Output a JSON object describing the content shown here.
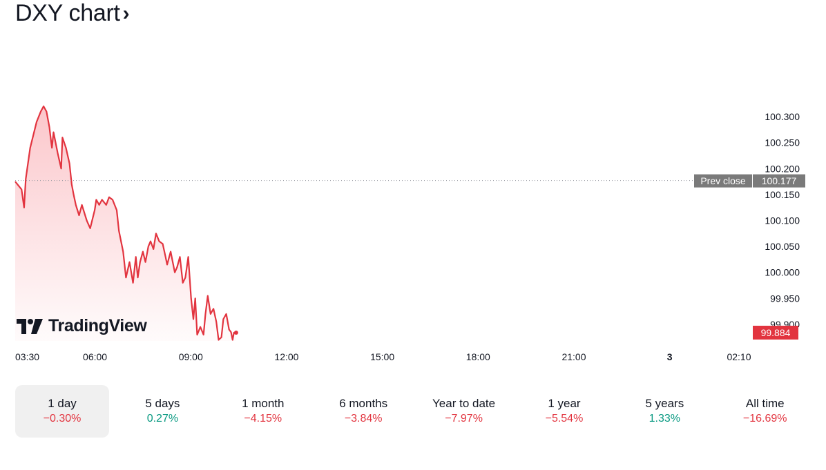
{
  "header": {
    "title": "DXY chart",
    "chevron": "›"
  },
  "watermark": {
    "text": "TradingView",
    "icon": "tradingview-logo-icon"
  },
  "colors": {
    "line": "#e2343f",
    "negative": "#e2343f",
    "positive": "#089981",
    "prev_close_bg": "#7a7a7a",
    "last_price_bg": "#e2343f"
  },
  "prev_close": {
    "label": "Prev close",
    "value": "100.177"
  },
  "last_price": {
    "value": "99.884"
  },
  "periods": [
    {
      "label": "1 day",
      "change": "−0.30%",
      "direction": "negative",
      "active": true
    },
    {
      "label": "5 days",
      "change": "0.27%",
      "direction": "positive",
      "active": false
    },
    {
      "label": "1 month",
      "change": "−4.15%",
      "direction": "negative",
      "active": false
    },
    {
      "label": "6 months",
      "change": "−3.84%",
      "direction": "negative",
      "active": false
    },
    {
      "label": "Year to date",
      "change": "−7.97%",
      "direction": "negative",
      "active": false
    },
    {
      "label": "1 year",
      "change": "−5.54%",
      "direction": "negative",
      "active": false
    },
    {
      "label": "5 years",
      "change": "1.33%",
      "direction": "positive",
      "active": false
    },
    {
      "label": "All time",
      "change": "−16.69%",
      "direction": "negative",
      "active": false
    }
  ],
  "chart_data": {
    "type": "area",
    "title": "",
    "xlabel": "",
    "ylabel": "",
    "ylim": [
      99.868,
      100.336
    ],
    "x_ticks": [
      {
        "label": "03:30",
        "hours": 3.5,
        "bold": false
      },
      {
        "label": "06:00",
        "hours": 6.0,
        "bold": false
      },
      {
        "label": "09:00",
        "hours": 9.0,
        "bold": false
      },
      {
        "label": "12:00",
        "hours": 12.0,
        "bold": false
      },
      {
        "label": "15:00",
        "hours": 15.0,
        "bold": false
      },
      {
        "label": "18:00",
        "hours": 18.0,
        "bold": false
      },
      {
        "label": "21:00",
        "hours": 21.0,
        "bold": false
      },
      {
        "label": "3",
        "hours": 24.0,
        "bold": true
      },
      {
        "label": "02:10",
        "hours": 26.17,
        "bold": false
      }
    ],
    "y_ticks": [
      "100.300",
      "100.250",
      "100.200",
      "100.150",
      "100.100",
      "100.050",
      "100.000",
      "99.950",
      "99.900"
    ],
    "grid": false,
    "series": [
      {
        "x": [
          3.5,
          3.7,
          3.78,
          3.83,
          3.97,
          4.17,
          4.3,
          4.39,
          4.48,
          4.57,
          4.61,
          4.65,
          4.7,
          4.83,
          4.94,
          4.98,
          5.09,
          5.2,
          5.27,
          5.33,
          5.4,
          5.5,
          5.59,
          5.74,
          5.85,
          5.99,
          6.04,
          6.13,
          6.22,
          6.35,
          6.44,
          6.55,
          6.68,
          6.75,
          6.88,
          6.97,
          7.08,
          7.19,
          7.28,
          7.34,
          7.41,
          7.5,
          7.58,
          7.67,
          7.74,
          7.83,
          7.91,
          8.01,
          8.12,
          8.21,
          8.26,
          8.37,
          8.5,
          8.57,
          8.66,
          8.75,
          8.83,
          8.92,
          9.01,
          9.08,
          9.14,
          9.2,
          9.3,
          9.4,
          9.46,
          9.53,
          9.62,
          9.71,
          9.8,
          9.87,
          9.96,
          10.02,
          10.11,
          10.2,
          10.26,
          10.31,
          10.35,
          10.42
        ],
        "y": [
          100.175,
          100.16,
          100.125,
          100.18,
          100.24,
          100.29,
          100.31,
          100.32,
          100.31,
          100.28,
          100.26,
          100.24,
          100.27,
          100.23,
          100.2,
          100.26,
          100.24,
          100.21,
          100.17,
          100.15,
          100.13,
          100.11,
          100.13,
          100.1,
          100.085,
          100.12,
          100.14,
          100.13,
          100.14,
          100.13,
          100.145,
          100.14,
          100.12,
          100.08,
          100.04,
          99.99,
          100.02,
          99.98,
          100.03,
          99.99,
          100.02,
          100.04,
          100.02,
          100.05,
          100.06,
          100.045,
          100.075,
          100.06,
          100.055,
          100.03,
          100.015,
          100.04,
          100.0,
          100.01,
          100.03,
          99.98,
          99.99,
          100.03,
          99.95,
          99.91,
          99.95,
          99.88,
          99.895,
          99.88,
          99.92,
          99.955,
          99.92,
          99.93,
          99.905,
          99.87,
          99.875,
          99.91,
          99.92,
          99.89,
          99.885,
          99.87,
          99.884,
          99.884
        ]
      }
    ],
    "prev_close": 100.177,
    "last_value": 99.884,
    "legend": "none"
  }
}
